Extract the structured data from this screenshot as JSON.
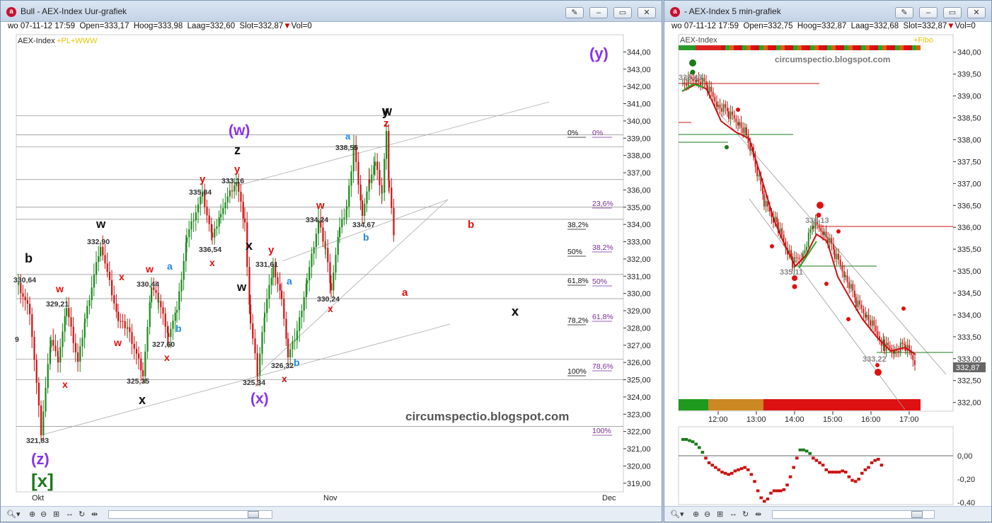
{
  "left": {
    "title": "Bull - AEX-Index Uur-grafiek",
    "quote": {
      "date": "wo 07-11-12 17:59",
      "open": "Open=333,17",
      "high": "Hoog=333,98",
      "low": "Laag=332,60",
      "close": "Slot=332,87",
      "vol": "Vol=0"
    },
    "series_label": "AEX-Index",
    "series_label_extra": "+PL+WWW",
    "watermark": "circumspectio.blogspot.com",
    "x_labels": [
      "Okt",
      "Nov",
      "Dec"
    ],
    "y_ticks": [
      "344,00",
      "343,00",
      "342,00",
      "341,00",
      "340,00",
      "339,00",
      "338,00",
      "337,00",
      "336,00",
      "335,00",
      "334,00",
      "333,00",
      "332,00",
      "331,00",
      "330,00",
      "329,00",
      "328,00",
      "327,00",
      "326,00",
      "325,00",
      "324,00",
      "323,00",
      "322,00",
      "321,00",
      "320,00",
      "319,00"
    ],
    "price_labels": [
      "330,64",
      "329,21",
      "332,90",
      "330,44",
      "327,60",
      "325,35",
      "321,83",
      "335,84",
      "336,54",
      "333,16",
      "331,61",
      "325,34",
      "326,32",
      "330,24",
      "334,24",
      "338,55",
      "334,67",
      "9"
    ],
    "wave_labels": [
      "b",
      "w",
      "x",
      "w",
      "x",
      "x",
      "w",
      "a",
      "b",
      "x",
      "w",
      "y",
      "x",
      "y",
      "z",
      "y",
      "(w)",
      "x",
      "w",
      "x",
      "x",
      "(x)",
      "w",
      "a",
      "b",
      "x",
      "y",
      "b",
      "a",
      "w",
      "z",
      "b",
      "a",
      "x",
      "(y)",
      "(z)",
      "[x]"
    ],
    "fib_black": [
      "0%",
      "38,2%",
      "50%",
      "61,8%",
      "78,2%",
      "100%"
    ],
    "fib_purple": [
      "0%",
      "23,6%",
      "38,2%",
      "50%",
      "61,8%",
      "78,6%",
      "100%"
    ]
  },
  "right": {
    "title": "- AEX-Index 5 min-grafiek",
    "quote": {
      "date": "wo 07-11-12 17:59",
      "open": "Open=332,75",
      "high": "Hoog=332,87",
      "low": "Laag=332,68",
      "close": "Slot=332,87",
      "vol": "Vol=0"
    },
    "series_label": "AEX-Index",
    "series_label_extra": "+Fibo",
    "watermark": "circumspectio.blogspot.com",
    "x_labels": [
      "12:00",
      "13:00",
      "14:00",
      "15:00",
      "16:00",
      "17:00"
    ],
    "y_ticks": [
      "340,00",
      "339,50",
      "339,00",
      "338,50",
      "338,00",
      "337,50",
      "337,00",
      "336,50",
      "336,00",
      "335,50",
      "335,00",
      "334,50",
      "334,00",
      "333,50",
      "333,00",
      "332,50",
      "332,00"
    ],
    "price_labels": [
      "339,43",
      "336,13",
      "335,11",
      "333,22"
    ],
    "last_price": "332,87",
    "osc_ticks": [
      "0,00",
      "-0,20",
      "-0,40"
    ]
  },
  "colors": {
    "up": "#1a8a1a",
    "down": "#cc1111",
    "purple": "#8833ee",
    "blue": "#1e88e5",
    "red": "#e01010",
    "green": "#1a7a1a"
  },
  "chart_data": [
    {
      "type": "candlestick",
      "title": "AEX-Index Uur-grafiek",
      "ylim": [
        318.5,
        345
      ],
      "x_categories": [
        "Okt",
        "Nov",
        "Dec"
      ],
      "swing_points": [
        {
          "label": "330,64",
          "value": 330.64
        },
        {
          "label": "321,83",
          "value": 321.83
        },
        {
          "label": "329,21",
          "value": 329.21
        },
        {
          "label": "332,90",
          "value": 332.9
        },
        {
          "label": "325,35",
          "value": 325.35
        },
        {
          "label": "330,44",
          "value": 330.44
        },
        {
          "label": "327,60",
          "value": 327.6
        },
        {
          "label": "335,84",
          "value": 335.84
        },
        {
          "label": "333,16",
          "value": 333.16
        },
        {
          "label": "336,54",
          "value": 336.54
        },
        {
          "label": "325,34",
          "value": 325.34
        },
        {
          "label": "331,61",
          "value": 331.61
        },
        {
          "label": "326,32",
          "value": 326.32
        },
        {
          "label": "334,24",
          "value": 334.24
        },
        {
          "label": "330,24",
          "value": 330.24
        },
        {
          "label": "338,55",
          "value": 338.55
        },
        {
          "label": "334,67",
          "value": 334.67
        }
      ],
      "last_close": 332.87
    },
    {
      "type": "candlestick",
      "title": "AEX-Index 5 min-grafiek",
      "ylim": [
        331.8,
        340.4
      ],
      "x_categories": [
        "12:00",
        "13:00",
        "14:00",
        "15:00",
        "16:00",
        "17:00"
      ],
      "swing_points": [
        {
          "label": "339,43",
          "value": 339.43
        },
        {
          "label": "336,13",
          "value": 336.13
        },
        {
          "label": "335,11",
          "value": 335.11
        },
        {
          "label": "333,22",
          "value": 333.22
        }
      ],
      "last_close": 332.87
    }
  ]
}
